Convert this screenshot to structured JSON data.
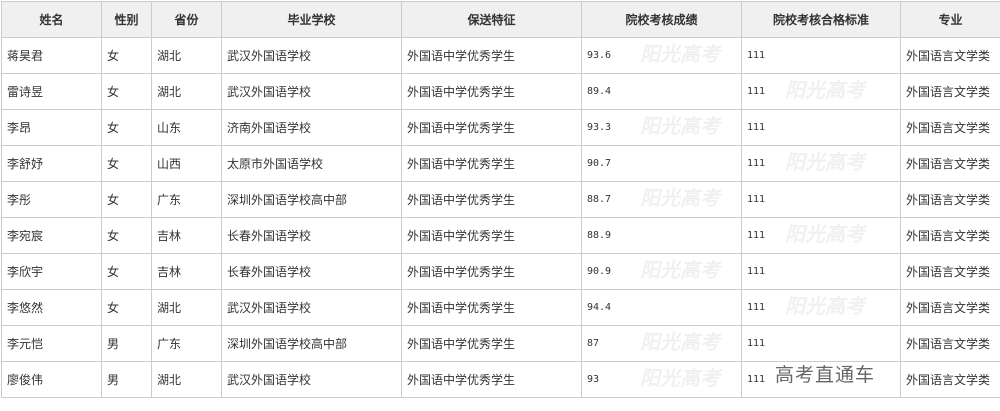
{
  "table": {
    "headers": [
      "姓名",
      "性别",
      "省份",
      "毕业学校",
      "保送特征",
      "院校考核成绩",
      "院校考核合格标准",
      "专业"
    ],
    "rows": [
      [
        "蒋昊君",
        "女",
        "湖北",
        "武汉外国语学校",
        "外国语中学优秀学生",
        "93.6",
        "111",
        "外国语言文学类"
      ],
      [
        "雷诗昱",
        "女",
        "湖北",
        "武汉外国语学校",
        "外国语中学优秀学生",
        "89.4",
        "111",
        "外国语言文学类"
      ],
      [
        "李昂",
        "女",
        "山东",
        "济南外国语学校",
        "外国语中学优秀学生",
        "93.3",
        "111",
        "外国语言文学类"
      ],
      [
        "李舒妤",
        "女",
        "山西",
        "太原市外国语学校",
        "外国语中学优秀学生",
        "90.7",
        "111",
        "外国语言文学类"
      ],
      [
        "李彤",
        "女",
        "广东",
        "深圳外国语学校高中部",
        "外国语中学优秀学生",
        "88.7",
        "111",
        "外国语言文学类"
      ],
      [
        "李宛宸",
        "女",
        "吉林",
        "长春外国语学校",
        "外国语中学优秀学生",
        "88.9",
        "111",
        "外国语言文学类"
      ],
      [
        "李欣宇",
        "女",
        "吉林",
        "长春外国语学校",
        "外国语中学优秀学生",
        "90.9",
        "111",
        "外国语言文学类"
      ],
      [
        "李悠然",
        "女",
        "湖北",
        "武汉外国语学校",
        "外国语中学优秀学生",
        "94.4",
        "111",
        "外国语言文学类"
      ],
      [
        "李元恺",
        "男",
        "广东",
        "深圳外国语学校高中部",
        "外国语中学优秀学生",
        "87",
        "111",
        "外国语言文学类"
      ],
      [
        "廖俊伟",
        "男",
        "湖北",
        "武汉外国语学校",
        "外国语中学优秀学生",
        "93",
        "111",
        "外国语言文学类"
      ]
    ]
  },
  "watermark": "阳光高考",
  "corner_watermark": "高考直通车"
}
